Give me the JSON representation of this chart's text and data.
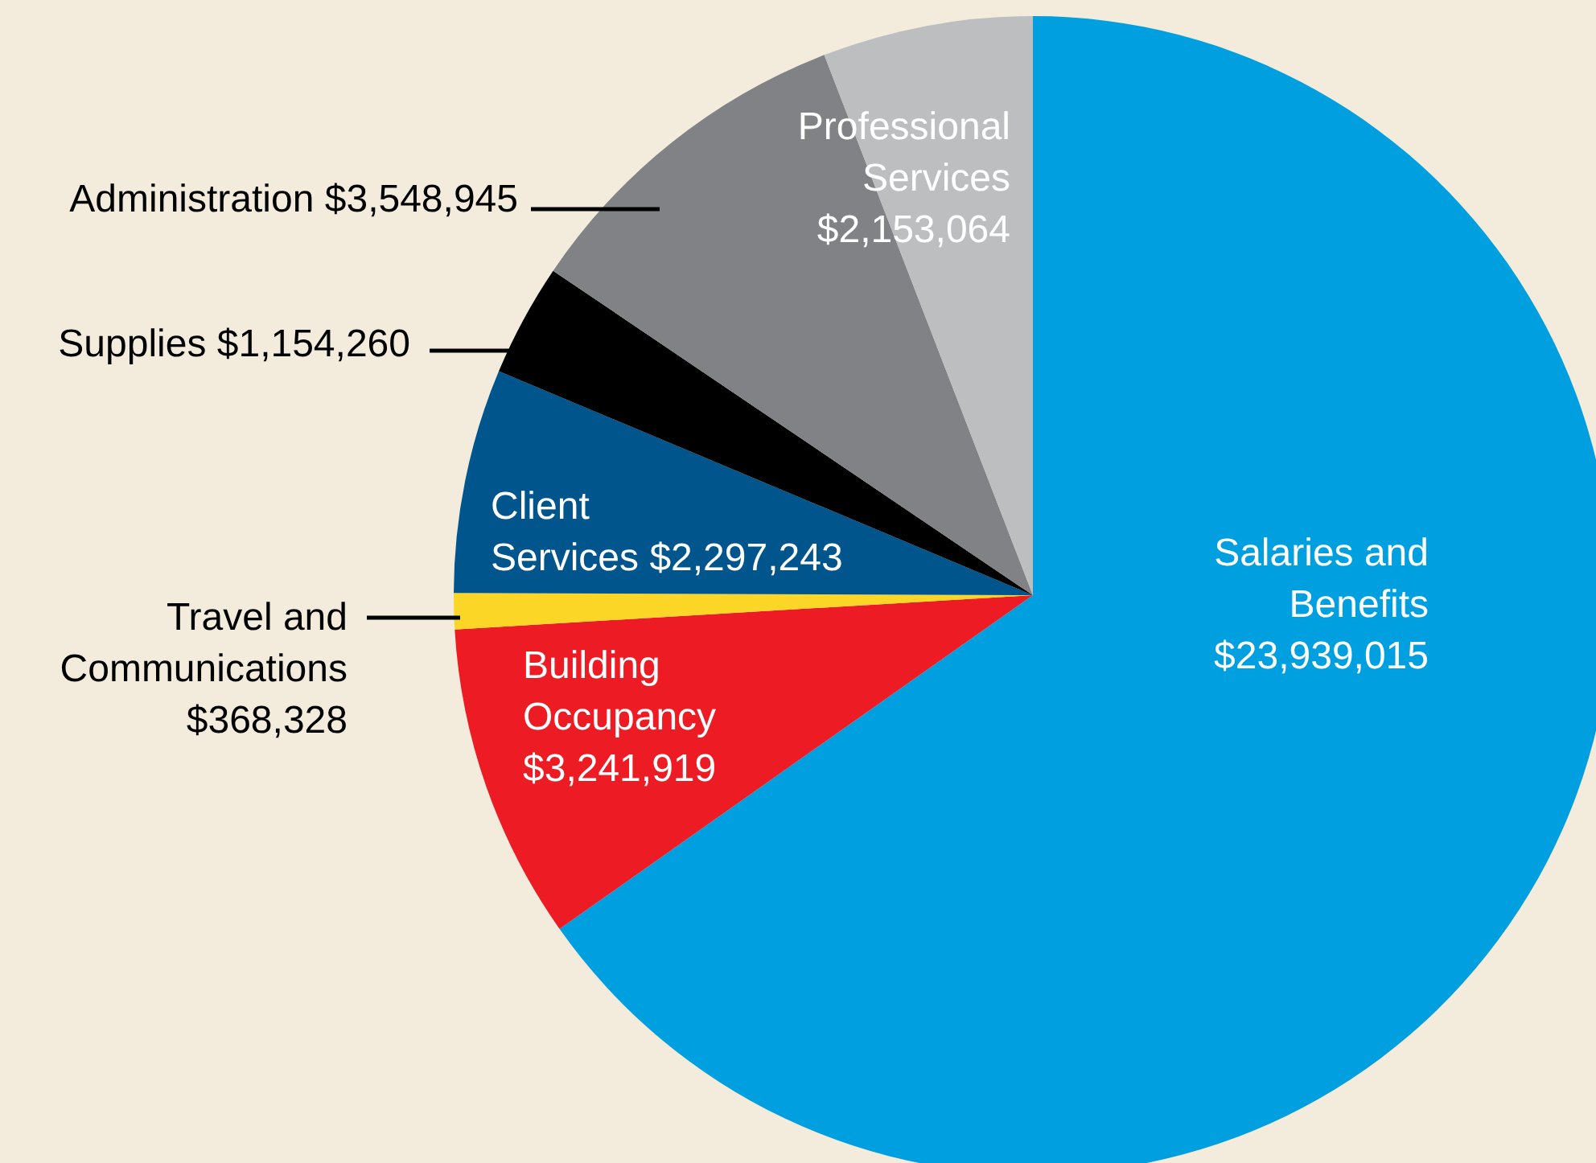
{
  "chart_data": {
    "type": "pie",
    "categories": [
      "Salaries and Benefits",
      "Building Occupancy",
      "Travel and Communications",
      "Client Services",
      "Supplies",
      "Administration",
      "Professional Services"
    ],
    "values": [
      23939015,
      3241919,
      368328,
      2297243,
      1154260,
      3548945,
      2153064
    ],
    "colors": [
      "#009fdf",
      "#ed1c24",
      "#fbd627",
      "#00558c",
      "#000000",
      "#808285",
      "#bcbec0"
    ],
    "value_labels": [
      "$23,939,015",
      "$3,241,919",
      "$368,328",
      "$2,297,243",
      "$1,154,260",
      "$3,548,945",
      "$2,153,064"
    ],
    "legend": false
  }
}
